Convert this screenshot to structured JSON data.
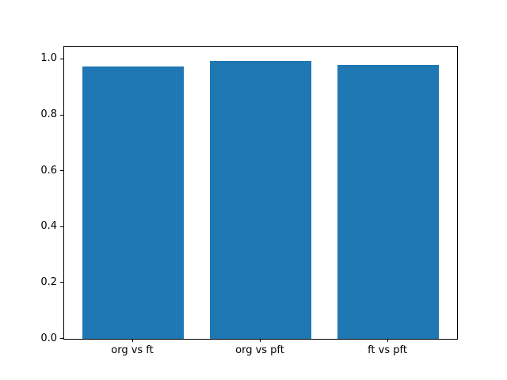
{
  "chart_data": {
    "type": "bar",
    "categories": [
      "org vs ft",
      "org vs pft",
      "ft vs pft"
    ],
    "values": [
      0.975,
      0.995,
      0.98
    ],
    "title": "",
    "xlabel": "",
    "ylabel": "",
    "ylim": [
      0,
      1.045
    ],
    "yticks": [
      0.0,
      0.2,
      0.4,
      0.6,
      0.8,
      1.0
    ],
    "ytick_labels": [
      "0.0",
      "0.2",
      "0.4",
      "0.6",
      "0.8",
      "1.0"
    ],
    "bar_color": "#1f77b4",
    "bar_width_units": 0.8,
    "xlim": [
      -0.54,
      2.54
    ],
    "grid": false,
    "legend": false,
    "background_color": "#ffffff",
    "axis_color": "#000000"
  }
}
